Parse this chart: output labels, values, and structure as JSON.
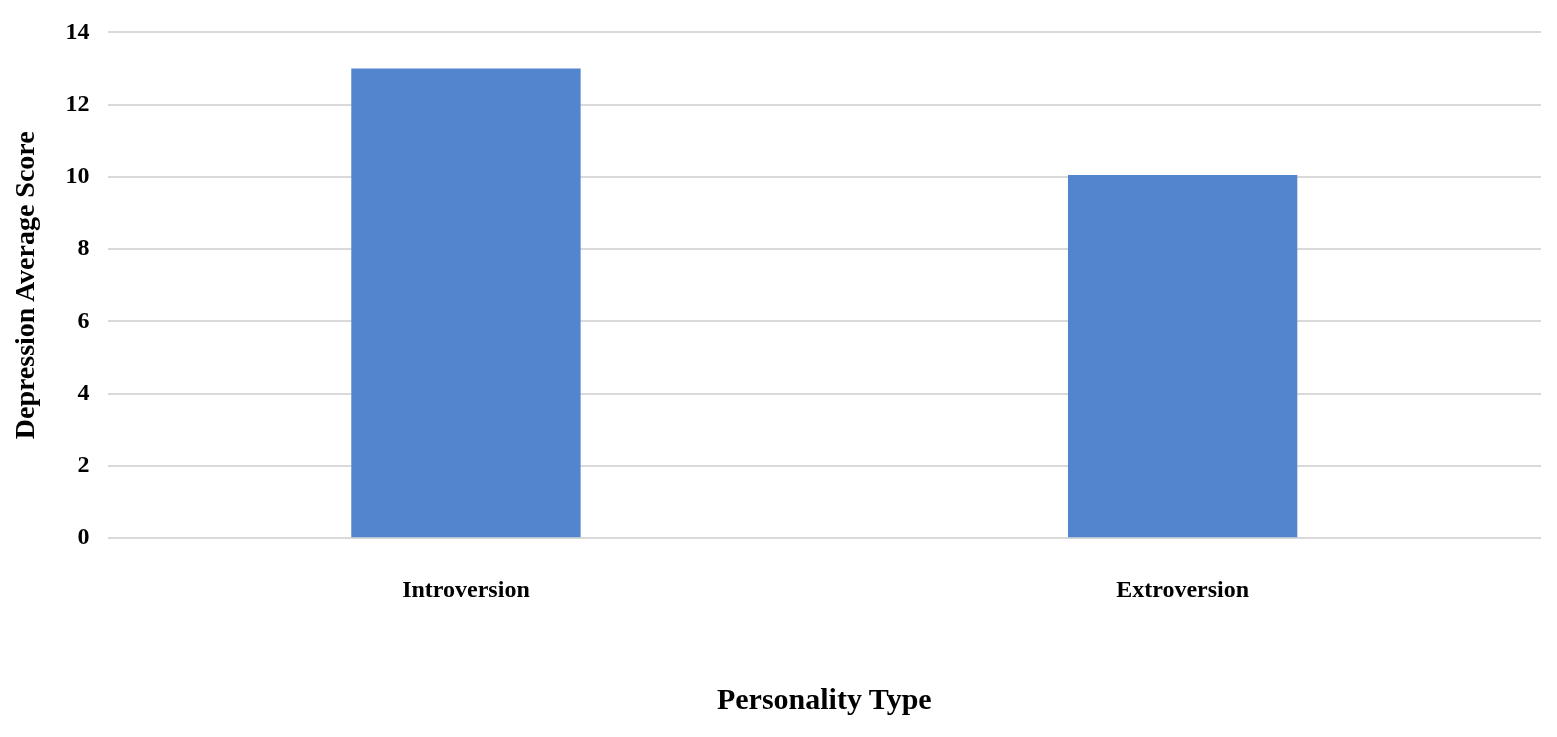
{
  "chart_data": {
    "type": "bar",
    "xlabel": "Personality Type",
    "ylabel": "Depression Average Score",
    "categories": [
      "Introversion",
      "Extroversion"
    ],
    "values": [
      13,
      10.05
    ],
    "color": "#5185cd",
    "ylim": [
      0,
      14
    ],
    "yticks": [
      0,
      2,
      4,
      6,
      8,
      10,
      12,
      14
    ],
    "grid": "y",
    "legend": false
  }
}
